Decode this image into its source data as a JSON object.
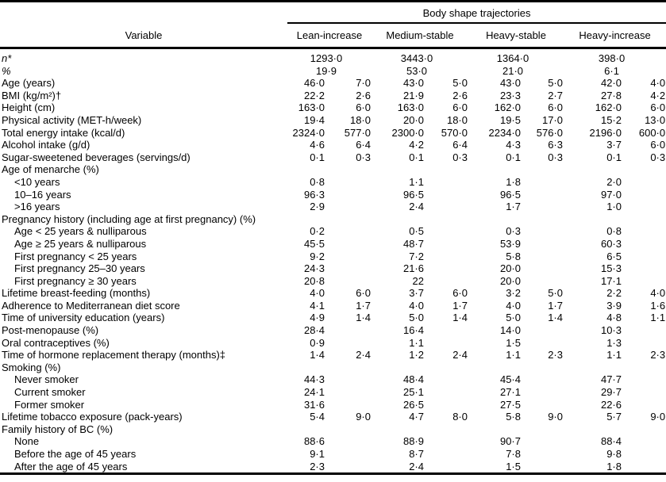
{
  "table": {
    "spanner": "Body shape trajectories",
    "variable_header": "Variable",
    "group_headers": [
      "Lean-increase",
      "Medium-stable",
      "Heavy-stable",
      "Heavy-increase"
    ],
    "rows": [
      {
        "label": "n*",
        "italic": true,
        "span": true,
        "cells": [
          "1293·0",
          "3443·0",
          "1364·0",
          "398·0"
        ]
      },
      {
        "label": "%",
        "italic": true,
        "span": true,
        "cells": [
          "19·9",
          "53·0",
          "21·0",
          "6·1"
        ]
      },
      {
        "label": "Age (years)",
        "cells": [
          "46·0",
          "7·0",
          "43·0",
          "5·0",
          "43·0",
          "5·0",
          "42·0",
          "4·0"
        ]
      },
      {
        "label": "BMI (kg/m²)†",
        "cells": [
          "22·2",
          "2·6",
          "21·9",
          "2·6",
          "23·3",
          "2·7",
          "27·8",
          "4·2"
        ]
      },
      {
        "label": "Height (cm)",
        "cells": [
          "163·0",
          "6·0",
          "163·0",
          "6·0",
          "162·0",
          "6·0",
          "162·0",
          "6·0"
        ]
      },
      {
        "label": "Physical activity (MET-h/week)",
        "cells": [
          "19·4",
          "18·0",
          "20·0",
          "18·0",
          "19·5",
          "17·0",
          "15·2",
          "13·0"
        ]
      },
      {
        "label": "Total energy intake (kcal/d)",
        "cells": [
          "2324·0",
          "577·0",
          "2300·0",
          "570·0",
          "2234·0",
          "576·0",
          "2196·0",
          "600·0"
        ]
      },
      {
        "label": "Alcohol intake (g/d)",
        "cells": [
          "4·6",
          "6·4",
          "4·2",
          "6·4",
          "4·3",
          "6·3",
          "3·7",
          "6·0"
        ]
      },
      {
        "label": "Sugar-sweetened beverages (servings/d)",
        "cells": [
          "0·1",
          "0·3",
          "0·1",
          "0·3",
          "0·1",
          "0·3",
          "0·1",
          "0·3"
        ]
      },
      {
        "label": "Age of menarche (%)",
        "section": true
      },
      {
        "label": "<10 years",
        "indent": true,
        "cells": [
          "0·8",
          "",
          "1·1",
          "",
          "1·8",
          "",
          "2·0",
          ""
        ]
      },
      {
        "label": "10–16 years",
        "indent": true,
        "cells": [
          "96·3",
          "",
          "96·5",
          "",
          "96·5",
          "",
          "97·0",
          ""
        ]
      },
      {
        "label": ">16 years",
        "indent": true,
        "cells": [
          "2·9",
          "",
          "2·4",
          "",
          "1·7",
          "",
          "1·0",
          ""
        ]
      },
      {
        "label": "Pregnancy history (including age at first pregnancy) (%)",
        "section": true
      },
      {
        "label": "Age < 25 years & nulliparous",
        "indent": true,
        "cells": [
          "0·2",
          "",
          "0·5",
          "",
          "0·3",
          "",
          "0·8",
          ""
        ]
      },
      {
        "label": "Age ≥ 25 years & nulliparous",
        "indent": true,
        "cells": [
          "45·5",
          "",
          "48·7",
          "",
          "53·9",
          "",
          "60·3",
          ""
        ]
      },
      {
        "label": "First pregnancy < 25 years",
        "indent": true,
        "cells": [
          "9·2",
          "",
          "7·2",
          "",
          "5·8",
          "",
          "6·5",
          ""
        ]
      },
      {
        "label": "First pregnancy 25–30 years",
        "indent": true,
        "cells": [
          "24·3",
          "",
          "21·6",
          "",
          "20·0",
          "",
          "15·3",
          ""
        ]
      },
      {
        "label": "First pregnancy ≥ 30 years",
        "indent": true,
        "cells": [
          "20·8",
          "",
          "22",
          "",
          "20·0",
          "",
          "17·1",
          ""
        ]
      },
      {
        "label": "Lifetime breast-feeding (months)",
        "cells": [
          "4·0",
          "6·0",
          "3·7",
          "6·0",
          "3·2",
          "5·0",
          "2·2",
          "4·0"
        ]
      },
      {
        "label": "Adherence to Mediterranean diet score",
        "cells": [
          "4·1",
          "1·7",
          "4·0",
          "1·7",
          "4·0",
          "1·7",
          "3·9",
          "1·6"
        ]
      },
      {
        "label": "Time of university education (years)",
        "cells": [
          "4·9",
          "1·4",
          "5·0",
          "1·4",
          "5·0",
          "1·4",
          "4·8",
          "1·1"
        ]
      },
      {
        "label": "Post-menopause (%)",
        "cells": [
          "28·4",
          "",
          "16·4",
          "",
          "14·0",
          "",
          "10·3",
          ""
        ]
      },
      {
        "label": "Oral contraceptives (%)",
        "cells": [
          "0·9",
          "",
          "1·1",
          "",
          "1·5",
          "",
          "1·3",
          ""
        ]
      },
      {
        "label": "Time of hormone replacement therapy (months)‡",
        "cells": [
          "1·4",
          "2·4",
          "1·2",
          "2·4",
          "1·1",
          "2·3",
          "1·1",
          "2·3"
        ]
      },
      {
        "label": "Smoking (%)",
        "section": true
      },
      {
        "label": "Never smoker",
        "indent": true,
        "cells": [
          "44·3",
          "",
          "48·4",
          "",
          "45·4",
          "",
          "47·7",
          ""
        ]
      },
      {
        "label": "Current smoker",
        "indent": true,
        "cells": [
          "24·1",
          "",
          "25·1",
          "",
          "27·1",
          "",
          "29·7",
          ""
        ]
      },
      {
        "label": "Former smoker",
        "indent": true,
        "cells": [
          "31·6",
          "",
          "26·5",
          "",
          "27·5",
          "",
          "22·6",
          ""
        ]
      },
      {
        "label": "Lifetime tobacco exposure (pack-years)",
        "cells": [
          "5·4",
          "9·0",
          "4·7",
          "8·0",
          "5·8",
          "9·0",
          "5·7",
          "9·0"
        ]
      },
      {
        "label": "Family history of BC (%)",
        "section": true
      },
      {
        "label": "None",
        "indent": true,
        "cells": [
          "88·6",
          "",
          "88·9",
          "",
          "90·7",
          "",
          "88·4",
          ""
        ]
      },
      {
        "label": "Before the age of 45 years",
        "indent": true,
        "cells": [
          "9·1",
          "",
          "8·7",
          "",
          "7·8",
          "",
          "9·8",
          ""
        ]
      },
      {
        "label": "After the age of 45 years",
        "indent": true,
        "cells": [
          "2·3",
          "",
          "2·4",
          "",
          "1·5",
          "",
          "1·8",
          ""
        ]
      }
    ]
  }
}
